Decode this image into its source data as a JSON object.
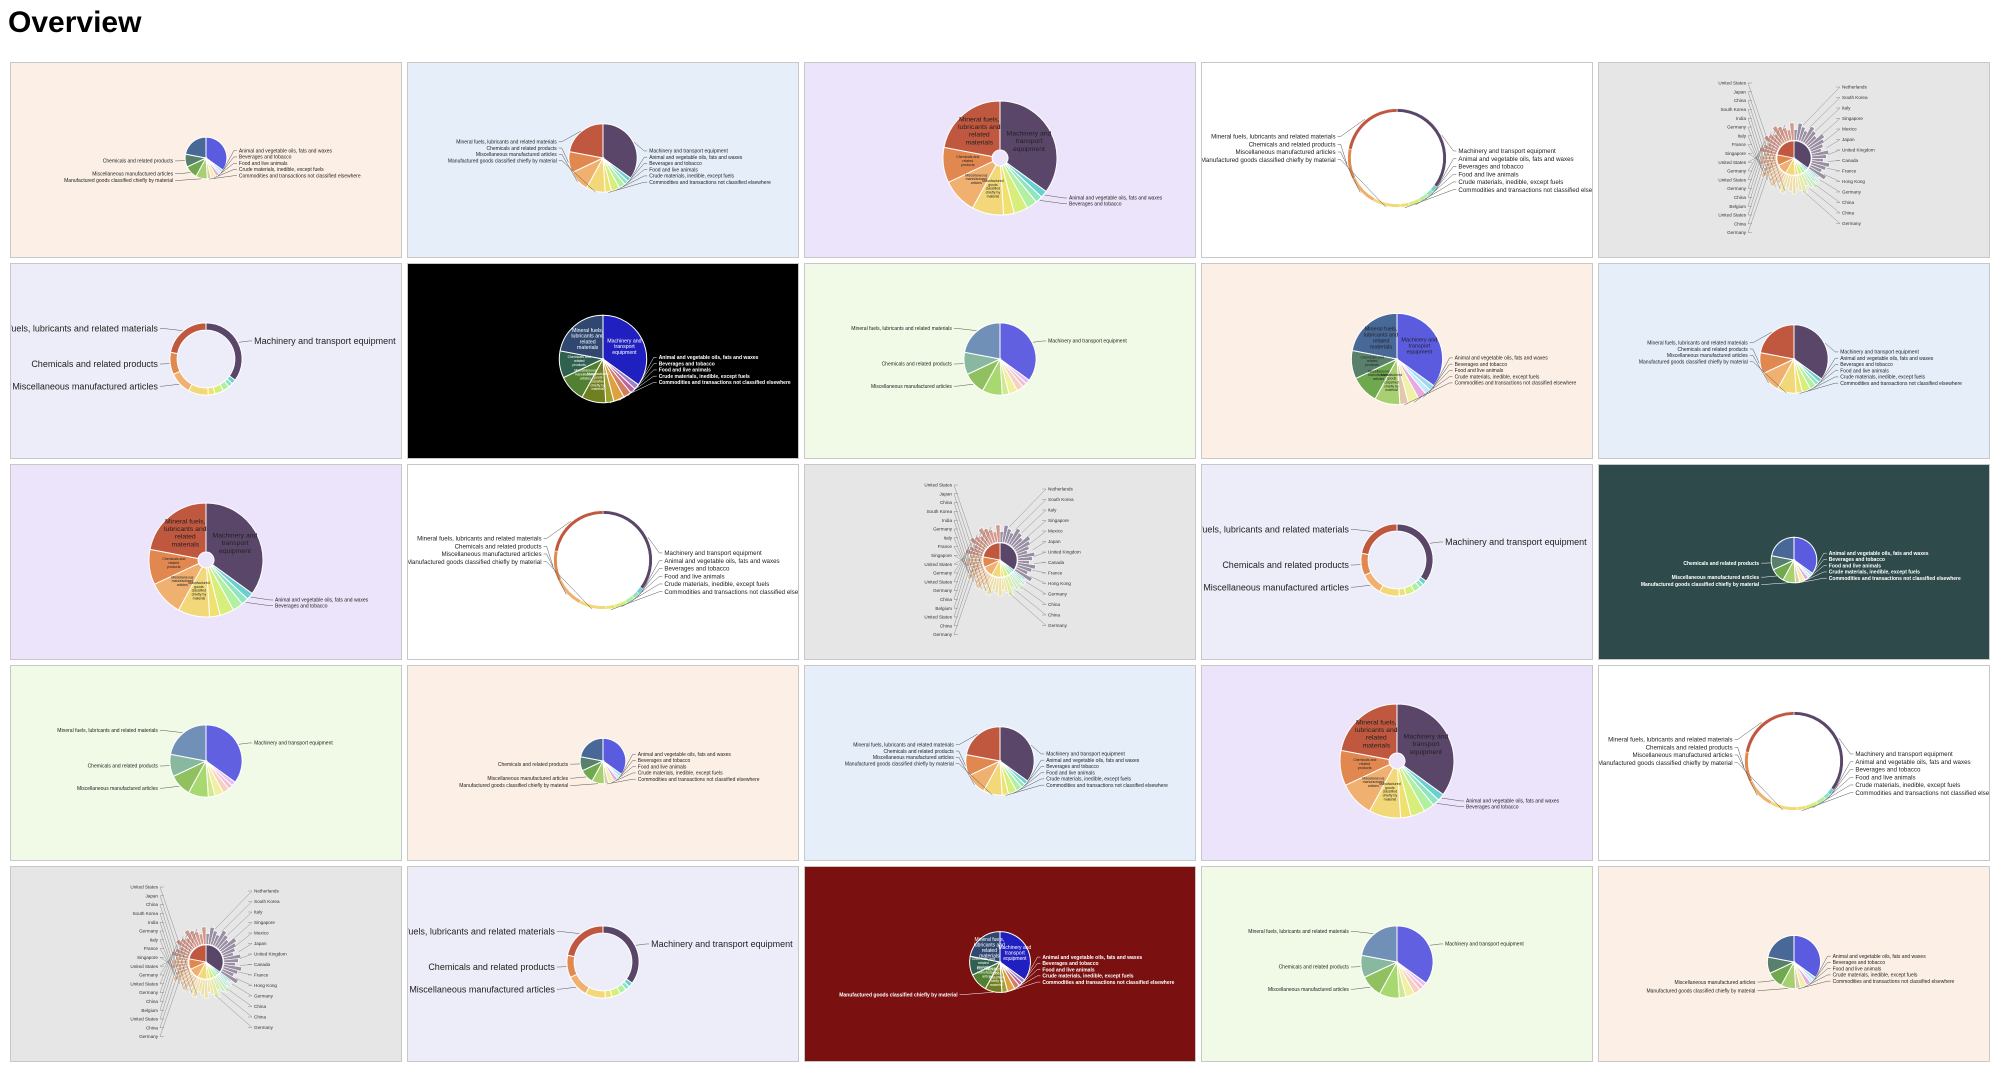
{
  "page": {
    "title": "Overview"
  },
  "chart_data": {
    "type": "pie",
    "categories": [
      "Machinery and transport equipment",
      "Animal and vegetable oils, fats and waxes",
      "Beverages and tobacco",
      "Food and live animals",
      "Crude materials, inedible, except fuels",
      "Commodities and transactions not classified elsewhere",
      "Manufactured goods classified chiefly by material",
      "Miscellaneous manufactured articles",
      "Chemicals and related products",
      "Mineral fuels, lubricants and related materials"
    ],
    "short_labels": [
      "Machinery and transport equipment",
      "Animal and vegetable oils, fats and waxes",
      "Beverages and tobacco",
      "Food and live animals",
      "Crude materials, inedible, except fuels",
      "Commodities and transactions not classified elsewhere",
      "Manufactured goods classified chiefly by material",
      "Miscellaneous manufactured articles",
      "Chemicals and related products",
      "Mineral fuels, lubricants and related materials"
    ],
    "values": [
      35,
      2,
      2,
      3,
      4,
      3,
      9,
      10,
      10,
      22
    ],
    "countries": {
      "left": [
        "United States",
        "Japan",
        "China",
        "South Korea",
        "India",
        "Germany",
        "Italy",
        "France",
        "Singapore",
        "United States",
        "Germany",
        "United States",
        "Germany",
        "China",
        "Belgium",
        "United States",
        "China",
        "Germany"
      ],
      "right": [
        "Netherlands",
        "South Korea",
        "Italy",
        "Singapore",
        "Mexico",
        "Japan",
        "United Kingdom",
        "Canada",
        "France",
        "Hong Kong",
        "Germany",
        "China",
        "China",
        "Germany"
      ]
    }
  },
  "tiles": [
    {
      "bg": "#fcf0e6",
      "palette": "A",
      "mode": "pie",
      "size": 0.55,
      "labels": "sm",
      "labelset": [
        8,
        7,
        6,
        1,
        2,
        3,
        4,
        5
      ],
      "inside": "tiny"
    },
    {
      "bg": "#e6eefa",
      "palette": "B",
      "mode": "pie",
      "size": 0.9,
      "labels": "sm",
      "labelset": [
        9,
        8,
        7,
        6,
        0,
        1,
        2,
        3,
        4,
        5
      ]
    },
    {
      "bg": "#ebe4fa",
      "palette": "B",
      "mode": "donut-thin-hole",
      "size": 1.5,
      "labels": "sm",
      "labelset": [
        1,
        2
      ],
      "inside": "big"
    },
    {
      "bg": "#ffffff",
      "palette": "B",
      "mode": "ring",
      "size": 1.3,
      "labels": "md",
      "labelset": [
        9,
        8,
        7,
        6,
        0,
        1,
        2,
        3,
        4,
        5
      ]
    },
    {
      "bg": "#e6e6e6",
      "palette": "B",
      "mode": "sunburst",
      "size": 1.0,
      "labels": "countries"
    },
    {
      "bg": "#ededfa",
      "palette": "B",
      "mode": "ring-thick",
      "size": 0.95,
      "labels": "lg",
      "labelset": [
        9,
        8,
        7,
        0
      ],
      "inside": "ring-small"
    },
    {
      "bg": "#000000",
      "palette": "C",
      "mode": "pie",
      "size": 1.15,
      "labels": "sm-white",
      "labelset": [
        1,
        2,
        3,
        4,
        5
      ],
      "inside": "big-white"
    },
    {
      "bg": "#f1fae6",
      "palette": "D",
      "mode": "pie",
      "size": 0.95,
      "labels": "sm",
      "labelset": [
        9,
        8,
        7,
        0
      ]
    },
    {
      "bg": "#fcf0e6",
      "palette": "A",
      "mode": "pie",
      "size": 1.2,
      "labels": "sm",
      "labelset": [
        1,
        2,
        3,
        4,
        5
      ],
      "inside": "big"
    },
    {
      "bg": "#e6eefa",
      "palette": "B",
      "mode": "pie",
      "size": 0.9,
      "labels": "sm",
      "labelset": [
        9,
        8,
        7,
        6,
        0,
        1,
        2,
        3,
        4,
        5
      ]
    },
    {
      "bg": "#ebe4fa",
      "palette": "B",
      "mode": "donut-thin-hole",
      "size": 1.5,
      "labels": "sm",
      "labelset": [
        1,
        2
      ],
      "inside": "big"
    },
    {
      "bg": "#ffffff",
      "palette": "B",
      "mode": "ring",
      "size": 1.3,
      "labels": "md",
      "labelset": [
        9,
        8,
        7,
        6,
        0,
        1,
        2,
        3,
        4,
        5
      ]
    },
    {
      "bg": "#e6e6e6",
      "palette": "B",
      "mode": "sunburst",
      "size": 1.0,
      "labels": "countries"
    },
    {
      "bg": "#ededfa",
      "palette": "B",
      "mode": "ring-thick",
      "size": 0.95,
      "labels": "lg",
      "labelset": [
        9,
        8,
        7,
        0
      ],
      "inside": "ring-small"
    },
    {
      "bg": "#2f4a4a",
      "palette": "A",
      "mode": "pie",
      "size": 0.6,
      "labels": "sm-white",
      "labelset": [
        8,
        7,
        6,
        1,
        2,
        3,
        4,
        5
      ],
      "inside": "tiny"
    },
    {
      "bg": "#f1fae6",
      "palette": "D",
      "mode": "pie",
      "size": 0.95,
      "labels": "sm",
      "labelset": [
        9,
        8,
        7,
        0
      ]
    },
    {
      "bg": "#fcf0e6",
      "palette": "A",
      "mode": "pie",
      "size": 0.6,
      "labels": "sm",
      "labelset": [
        8,
        7,
        6,
        1,
        2,
        3,
        4,
        5
      ],
      "inside": "tiny"
    },
    {
      "bg": "#e6eefa",
      "palette": "B",
      "mode": "pie",
      "size": 0.9,
      "labels": "sm",
      "labelset": [
        9,
        8,
        7,
        6,
        0,
        1,
        2,
        3,
        4,
        5
      ]
    },
    {
      "bg": "#ebe4fa",
      "palette": "B",
      "mode": "donut-thin-hole",
      "size": 1.5,
      "labels": "sm",
      "labelset": [
        1,
        2
      ],
      "inside": "big"
    },
    {
      "bg": "#ffffff",
      "palette": "B",
      "mode": "ring",
      "size": 1.3,
      "labels": "md",
      "labelset": [
        9,
        8,
        7,
        6,
        0,
        1,
        2,
        3,
        4,
        5
      ]
    },
    {
      "bg": "#e6e6e6",
      "palette": "B",
      "mode": "sunburst",
      "size": 1.0,
      "labels": "countries"
    },
    {
      "bg": "#ededfa",
      "palette": "B",
      "mode": "ring-thick",
      "size": 0.95,
      "labels": "lg",
      "labelset": [
        9,
        8,
        7,
        0
      ],
      "inside": "ring-small"
    },
    {
      "bg": "#7a1010",
      "palette": "C",
      "mode": "pie",
      "size": 0.8,
      "labels": "sm-white",
      "labelset": [
        6,
        1,
        2,
        3,
        4,
        5
      ],
      "inside": "big-white"
    },
    {
      "bg": "#f1fae6",
      "palette": "D",
      "mode": "pie",
      "size": 0.95,
      "labels": "sm",
      "labelset": [
        9,
        8,
        7,
        0
      ]
    },
    {
      "bg": "#fcf0e6",
      "palette": "A",
      "mode": "pie",
      "size": 0.7,
      "labels": "sm",
      "labelset": [
        7,
        6,
        1,
        2,
        3,
        4,
        5
      ],
      "inside": "tiny"
    }
  ],
  "palettes": {
    "A": [
      "#5b5be0",
      "#9fd9f0",
      "#c0e8ff",
      "#e8a8e0",
      "#f0f0a8",
      "#e0c8a8",
      "#a8d070",
      "#70a850",
      "#58806a",
      "#486898"
    ],
    "B": [
      "#5a4669",
      "#6acfd0",
      "#8fe5c0",
      "#b0f0a0",
      "#d8ee7a",
      "#f0e070",
      "#f2d878",
      "#f0b070",
      "#e08850",
      "#c05840"
    ],
    "C": [
      "#2020c0",
      "#a080c0",
      "#c060a0",
      "#d08060",
      "#e0a040",
      "#a0a030",
      "#708020",
      "#508030",
      "#306050",
      "#304870"
    ],
    "D": [
      "#6060e0",
      "#e8c0f0",
      "#f0c0d0",
      "#f8d0c0",
      "#f0f0a0",
      "#d0e890",
      "#a8d870",
      "#90c060",
      "#88b8a0",
      "#7090b8"
    ]
  }
}
